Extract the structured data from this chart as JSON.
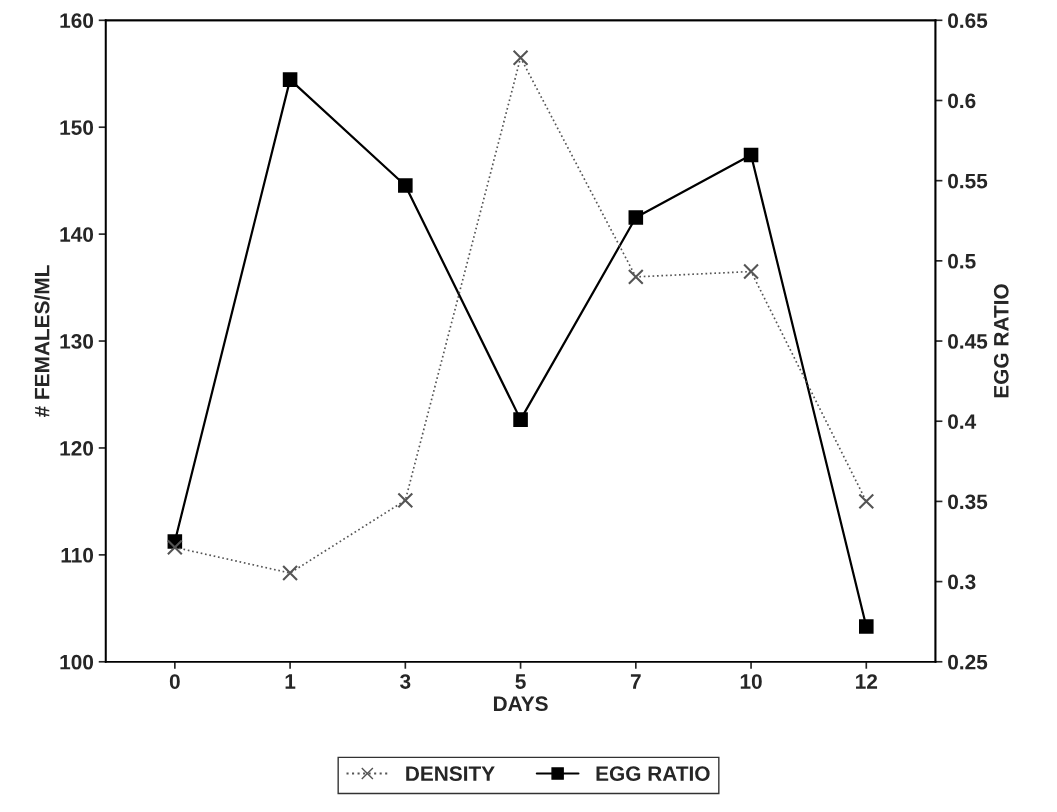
{
  "chart_data": {
    "type": "line",
    "xlabel": "DAYS",
    "ylabel": "# FEMALES/ML",
    "y2label": "EGG RATIO",
    "categories": [
      "0",
      "1",
      "3",
      "5",
      "7",
      "10",
      "12"
    ],
    "series": [
      {
        "name": "DENSITY",
        "color": "#555555",
        "marker": "cross",
        "line_style": "dotted",
        "values": [
          110.7,
          108.3,
          115.1,
          156.5,
          136.0,
          136.5,
          115.0
        ]
      },
      {
        "name": "EGG RATIO",
        "color": "#000000",
        "marker": "square",
        "line_style": "solid",
        "axis": "y2",
        "values": [
          0.325,
          0.613,
          0.547,
          0.401,
          0.527,
          0.566,
          0.272
        ]
      }
    ],
    "ylim": [
      100,
      160
    ],
    "yticks": [
      100,
      110,
      120,
      130,
      140,
      150,
      160
    ],
    "y2lim": [
      0.25,
      0.65
    ],
    "y2ticks": [
      {
        "value": 0.25,
        "label": "0.25"
      },
      {
        "value": 0.3,
        "label": "0.3"
      },
      {
        "value": 0.35,
        "label": "0.35"
      },
      {
        "value": 0.4,
        "label": "0.4"
      },
      {
        "value": 0.45,
        "label": "0.45"
      },
      {
        "value": 0.5,
        "label": "0.5"
      },
      {
        "value": 0.55,
        "label": "0.55"
      },
      {
        "value": 0.6,
        "label": "0.6"
      },
      {
        "value": 0.65,
        "label": "0.65"
      }
    ],
    "grid": false,
    "legend": "bottom"
  }
}
